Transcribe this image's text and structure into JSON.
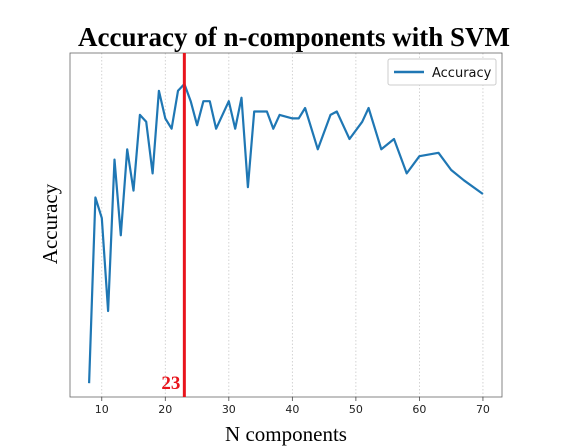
{
  "chart_data": {
    "type": "line",
    "title": "Accuracy of n-components with SVM",
    "xlabel": "N components",
    "ylabel": "Accuracy",
    "xlim": [
      5,
      73
    ],
    "ylim": [
      0,
      1
    ],
    "x_ticks": [
      10,
      20,
      30,
      40,
      50,
      60,
      70
    ],
    "grid": "x-only, dotted",
    "legend_position": "top-right",
    "series": [
      {
        "name": "Accuracy",
        "color": "#1f77b4",
        "x": [
          8,
          9,
          10,
          11,
          12,
          13,
          14,
          15,
          16,
          17,
          18,
          19,
          20,
          21,
          22,
          23,
          24,
          25,
          26,
          27,
          28,
          30,
          31,
          32,
          33,
          34,
          36,
          37,
          38,
          40,
          41,
          42,
          44,
          46,
          47,
          49,
          51,
          52,
          54,
          56,
          58,
          60,
          63,
          65,
          67,
          70
        ],
        "y": [
          0.04,
          0.58,
          0.52,
          0.25,
          0.69,
          0.47,
          0.72,
          0.6,
          0.82,
          0.8,
          0.65,
          0.89,
          0.81,
          0.78,
          0.89,
          0.91,
          0.86,
          0.79,
          0.86,
          0.86,
          0.78,
          0.86,
          0.78,
          0.87,
          0.61,
          0.83,
          0.83,
          0.78,
          0.82,
          0.81,
          0.81,
          0.84,
          0.72,
          0.82,
          0.83,
          0.75,
          0.8,
          0.84,
          0.72,
          0.75,
          0.65,
          0.7,
          0.71,
          0.66,
          0.63,
          0.59
        ]
      }
    ],
    "reference_line": {
      "x": 23,
      "label": "23",
      "color": "#e8141c"
    }
  }
}
